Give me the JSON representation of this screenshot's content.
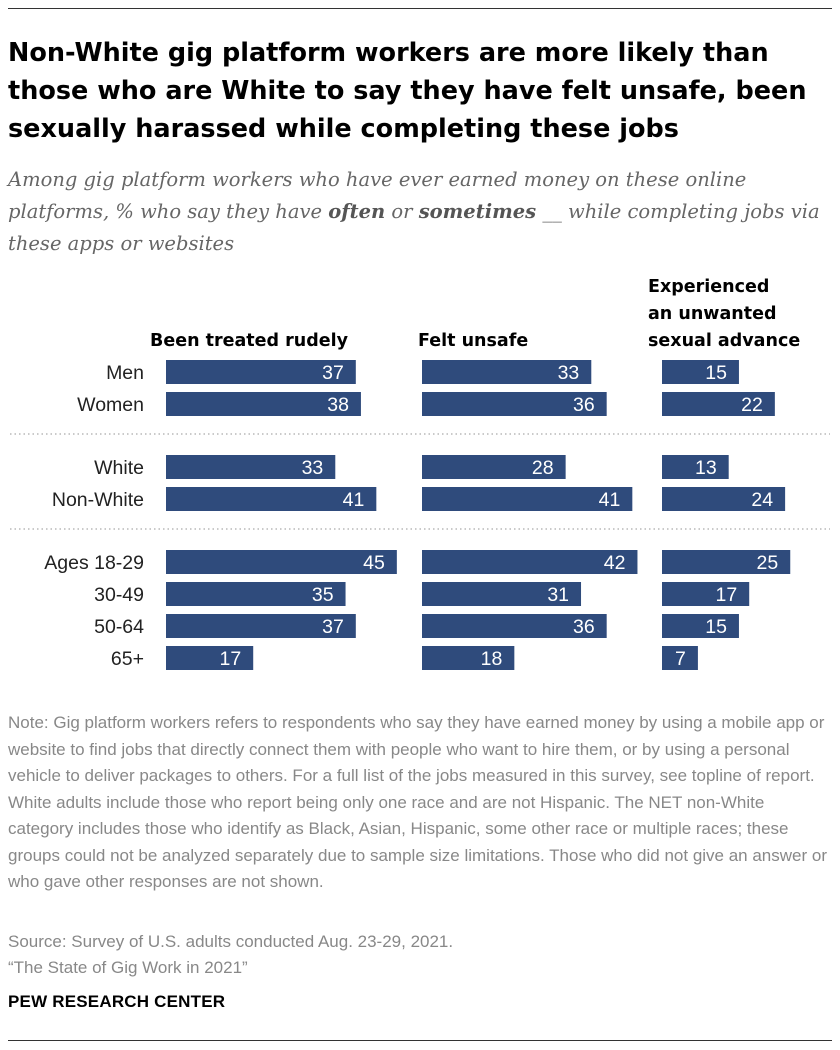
{
  "title": "Non-White gig platform workers are more likely than those who are White to say they have felt unsafe, been sexually harassed while completing these jobs",
  "subtitle": {
    "before": "Among gig platform workers who have ever earned money on these online platforms, % who say they have ",
    "em1": "often",
    "mid": " or ",
    "em2": "sometimes",
    "after": " __ while completing jobs via these apps or websites"
  },
  "chart_data": {
    "type": "bar",
    "orientation": "horizontal",
    "categories": [
      "Men",
      "Women",
      "White",
      "Non-White",
      "Ages 18-29",
      "30-49",
      "50-64",
      "65+"
    ],
    "groups": [
      [
        "Men",
        "Women"
      ],
      [
        "White",
        "Non-White"
      ],
      [
        "Ages 18-29",
        "30-49",
        "50-64",
        "65+"
      ]
    ],
    "series": [
      {
        "name": "Been treated rudely",
        "values": [
          37,
          38,
          33,
          41,
          45,
          35,
          37,
          17
        ]
      },
      {
        "name": "Felt unsafe",
        "values": [
          33,
          36,
          28,
          41,
          42,
          31,
          36,
          18
        ]
      },
      {
        "name": "Experienced an unwanted sexual advance",
        "values": [
          15,
          22,
          13,
          24,
          25,
          17,
          15,
          7
        ]
      }
    ],
    "xlim": [
      0,
      50
    ],
    "bar_color": "#2f4b7c",
    "label_color": "#ffffff",
    "grid": false
  },
  "note": "Note: Gig platform workers refers to respondents who say they have earned money by using a mobile app or website to find jobs that directly connect them with people who want to hire them, or by using a personal vehicle to deliver packages to others. For a full list of the jobs measured in this survey, see topline of report. White adults include those who report being only one race and are not Hispanic. The NET non-White category includes those who identify as Black, Asian, Hispanic, some other race or multiple races; these groups could not be analyzed separately due to sample size limitations. Those who did not give an answer or who gave other responses are not shown.",
  "source": "Source: Survey of U.S. adults conducted Aug. 23-29, 2021.",
  "report": "“The State of Gig Work in 2021”",
  "brand": "PEW RESEARCH CENTER"
}
